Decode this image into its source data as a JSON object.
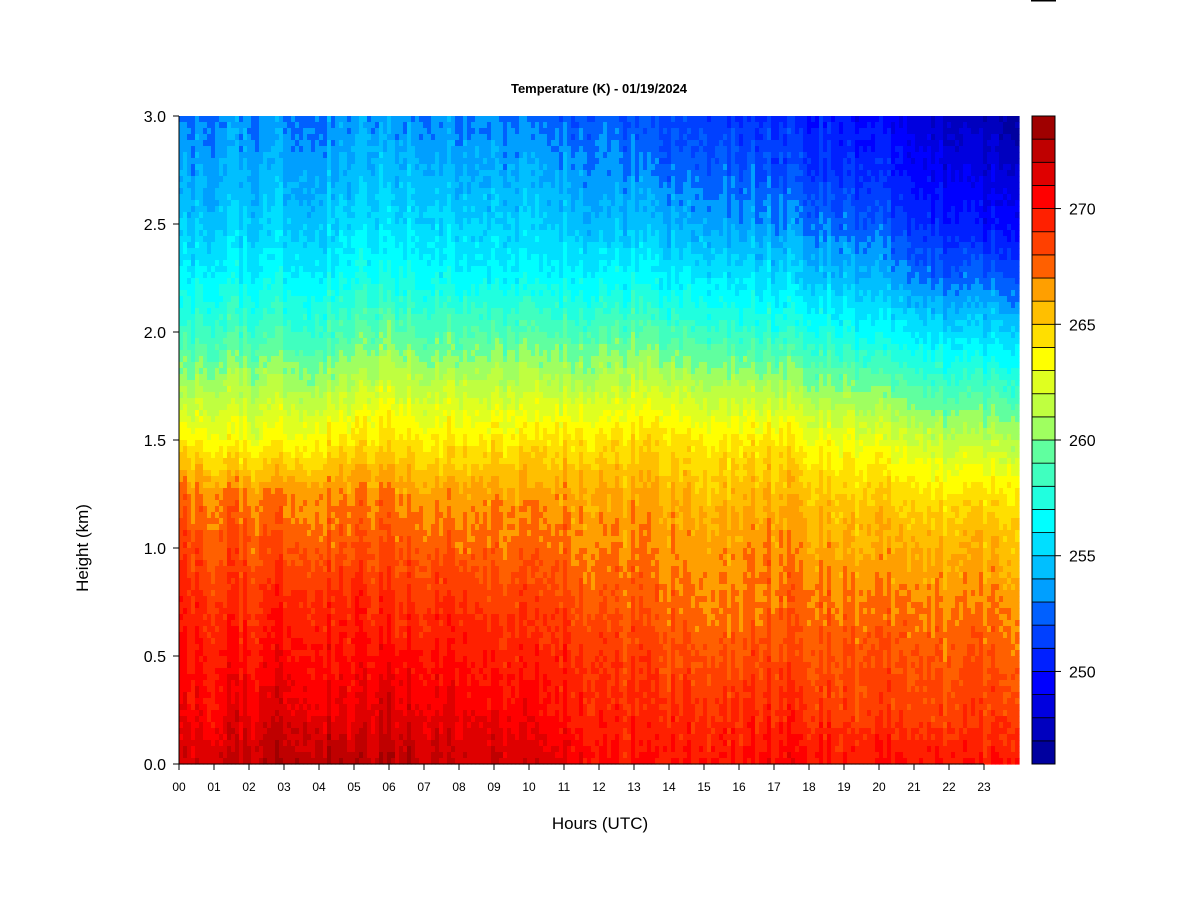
{
  "chart_data": {
    "type": "heatmap",
    "title": "Temperature (K) - 01/19/2024",
    "xlabel": "Hours (UTC)",
    "ylabel": "Height (km)",
    "x_ticks": [
      "00",
      "01",
      "02",
      "03",
      "04",
      "05",
      "06",
      "07",
      "08",
      "09",
      "10",
      "11",
      "12",
      "13",
      "14",
      "15",
      "16",
      "17",
      "18",
      "19",
      "20",
      "21",
      "22",
      "23"
    ],
    "xlim": [
      0,
      24
    ],
    "y_ticks": [
      "0.0",
      "0.5",
      "1.0",
      "1.5",
      "2.0",
      "2.5",
      "3.0"
    ],
    "ylim": [
      0,
      3
    ],
    "colorbar": {
      "range": [
        246,
        274
      ],
      "levels": 28,
      "tick_values": [
        250,
        255,
        260,
        265,
        270
      ],
      "tick_labels": [
        "250",
        "255",
        "260",
        "265",
        "270"
      ],
      "colors": [
        "#000080",
        "#00009f",
        "#0000bf",
        "#0000df",
        "#0000ff",
        "#0020ff",
        "#0040ff",
        "#0060ff",
        "#0080ff",
        "#009fff",
        "#00bfff",
        "#00dfff",
        "#00ffff",
        "#20ffdf",
        "#40ffbf",
        "#60ff9f",
        "#80ff80",
        "#9fff60",
        "#bfff40",
        "#dfff20",
        "#ffff00",
        "#ffdf00",
        "#ffbf00",
        "#ff9f00",
        "#ff8000",
        "#ff6000",
        "#ff4000",
        "#ff2000",
        "#ff0000",
        "#df0000",
        "#bf0000",
        "#9f0000",
        "#800000"
      ]
    },
    "z_grid_hours": [
      0,
      1,
      2,
      3,
      4,
      5,
      6,
      7,
      8,
      9,
      10,
      11,
      12,
      13,
      14,
      15,
      16,
      17,
      18,
      19,
      20,
      21,
      22,
      23,
      24
    ],
    "z_grid_heights_km": [
      0.0,
      0.25,
      0.5,
      0.75,
      1.0,
      1.25,
      1.5,
      1.75,
      2.0,
      2.25,
      2.5,
      2.75,
      3.0
    ],
    "z_values_K": [
      [
        271.5,
        270.5,
        270.0,
        269.5,
        268.5,
        267.5,
        264.0,
        260.5,
        258.0,
        256.0,
        254.5,
        253.5,
        252.5
      ],
      [
        272.0,
        270.5,
        270.0,
        269.0,
        268.0,
        267.0,
        263.5,
        261.0,
        258.5,
        256.5,
        255.0,
        254.0,
        253.0
      ],
      [
        272.5,
        271.0,
        270.0,
        269.0,
        268.0,
        267.0,
        263.0,
        261.0,
        258.5,
        256.5,
        255.0,
        254.0,
        253.0
      ],
      [
        273.0,
        271.5,
        270.5,
        269.5,
        268.0,
        267.0,
        263.5,
        261.0,
        258.5,
        256.5,
        255.0,
        254.0,
        253.0
      ],
      [
        273.0,
        271.5,
        270.5,
        269.5,
        268.0,
        267.0,
        264.0,
        261.0,
        258.5,
        256.5,
        255.0,
        254.0,
        253.0
      ],
      [
        272.5,
        271.0,
        270.0,
        269.5,
        268.0,
        267.0,
        264.5,
        261.5,
        259.0,
        257.0,
        255.5,
        254.5,
        253.5
      ],
      [
        273.0,
        271.5,
        270.5,
        269.0,
        268.0,
        267.0,
        264.5,
        262.0,
        259.5,
        257.0,
        255.5,
        254.5,
        253.5
      ],
      [
        272.5,
        271.0,
        270.0,
        269.0,
        268.0,
        266.5,
        264.0,
        261.5,
        259.0,
        257.0,
        255.5,
        254.5,
        253.0
      ],
      [
        272.0,
        271.0,
        270.0,
        269.0,
        267.5,
        266.5,
        264.0,
        261.5,
        259.0,
        256.5,
        255.0,
        254.0,
        253.0
      ],
      [
        272.0,
        270.5,
        269.5,
        268.5,
        267.5,
        266.5,
        264.0,
        261.5,
        259.0,
        256.5,
        255.0,
        254.0,
        253.0
      ],
      [
        271.5,
        270.5,
        269.5,
        268.5,
        267.5,
        266.5,
        264.0,
        261.5,
        259.0,
        256.5,
        255.0,
        254.0,
        252.5
      ],
      [
        271.5,
        270.0,
        269.5,
        268.5,
        267.5,
        266.5,
        264.5,
        261.5,
        259.0,
        256.5,
        255.0,
        253.5,
        252.5
      ],
      [
        270.5,
        269.5,
        269.0,
        268.0,
        267.0,
        266.5,
        264.5,
        261.5,
        259.0,
        256.5,
        254.5,
        253.5,
        252.5
      ],
      [
        270.0,
        269.0,
        268.5,
        267.5,
        267.0,
        266.0,
        264.5,
        261.5,
        259.0,
        256.5,
        254.5,
        253.0,
        252.0
      ],
      [
        270.0,
        269.0,
        268.0,
        267.5,
        266.5,
        266.0,
        264.5,
        261.5,
        258.5,
        256.0,
        254.0,
        252.5,
        251.5
      ],
      [
        270.0,
        269.0,
        268.0,
        267.0,
        266.5,
        265.5,
        264.0,
        261.0,
        258.5,
        256.0,
        254.0,
        252.5,
        251.5
      ],
      [
        270.0,
        269.0,
        268.0,
        267.0,
        266.5,
        265.5,
        264.0,
        261.0,
        258.0,
        255.5,
        253.5,
        252.0,
        251.0
      ],
      [
        270.5,
        269.5,
        268.5,
        267.5,
        267.0,
        266.0,
        264.5,
        261.0,
        258.0,
        255.5,
        253.5,
        252.0,
        251.0
      ],
      [
        270.5,
        269.0,
        268.0,
        267.5,
        266.5,
        265.5,
        263.5,
        260.5,
        257.5,
        255.0,
        253.0,
        251.5,
        250.5
      ],
      [
        270.0,
        268.5,
        268.0,
        267.0,
        266.0,
        265.0,
        263.0,
        260.0,
        257.0,
        254.5,
        252.5,
        251.0,
        250.0
      ],
      [
        270.0,
        268.5,
        268.0,
        267.0,
        266.0,
        265.0,
        262.5,
        259.5,
        256.5,
        254.0,
        252.0,
        250.5,
        249.5
      ],
      [
        270.0,
        268.5,
        268.0,
        267.0,
        266.0,
        264.5,
        262.0,
        259.0,
        256.0,
        253.0,
        251.0,
        249.5,
        248.5
      ],
      [
        270.0,
        268.5,
        268.0,
        267.0,
        266.0,
        264.5,
        261.5,
        258.5,
        255.5,
        252.5,
        250.5,
        249.0,
        248.0
      ],
      [
        270.0,
        268.5,
        268.0,
        267.0,
        266.0,
        264.5,
        261.5,
        258.5,
        255.5,
        252.5,
        250.0,
        248.5,
        247.5
      ],
      [
        270.5,
        269.0,
        268.0,
        267.0,
        266.0,
        264.5,
        261.5,
        258.5,
        255.5,
        252.5,
        250.0,
        248.5,
        247.0
      ]
    ]
  }
}
